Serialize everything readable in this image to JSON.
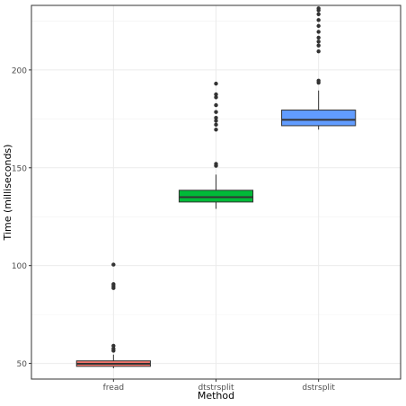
{
  "chart_data": {
    "type": "boxplot",
    "xlabel": "Method",
    "ylabel": "Time (milliseconds)",
    "ylim": [
      42,
      233
    ],
    "y_ticks": [
      50,
      100,
      150,
      200
    ],
    "grid": true,
    "categories": [
      "fread",
      "dtstrsplit",
      "dstrsplit"
    ],
    "boxes": [
      {
        "category": "fread",
        "color": "#F8766D",
        "q1": 48.5,
        "median": 49.8,
        "q3": 51.3,
        "whisker_low": 47.5,
        "whisker_high": 54.5,
        "outliers": [
          56.5,
          57.5,
          59.0,
          88.5,
          89.5,
          90.5,
          100.5
        ]
      },
      {
        "category": "dtstrsplit",
        "color": "#00BA38",
        "q1": 132.5,
        "median": 135.0,
        "q3": 138.5,
        "whisker_low": 129.0,
        "whisker_high": 146.5,
        "outliers": [
          151.0,
          152.0,
          169.5,
          172.0,
          174.0,
          175.5,
          178.5,
          182.0,
          186.0,
          187.5,
          193.0
        ]
      },
      {
        "category": "dstrsplit",
        "color": "#619CFF",
        "q1": 171.5,
        "median": 174.5,
        "q3": 179.5,
        "whisker_low": 169.5,
        "whisker_high": 189.5,
        "outliers": [
          193.5,
          194.5,
          209.5,
          212.5,
          214.5,
          216.5,
          219.5,
          222.5,
          225.5,
          228.5,
          230.5,
          231.5
        ]
      }
    ]
  }
}
